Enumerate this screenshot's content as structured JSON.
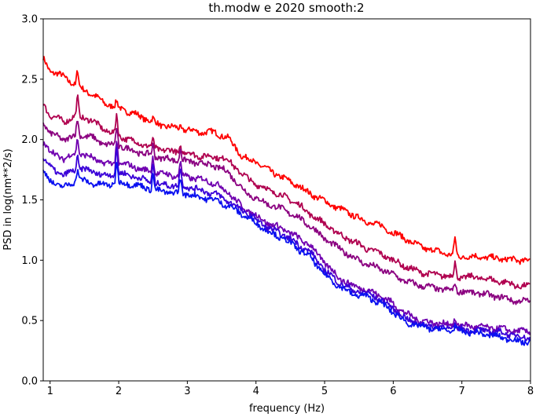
{
  "chart_data": {
    "type": "line",
    "title": "th.modw e 2020 smooth:2",
    "xlabel": "frequency (Hz)",
    "ylabel": "PSD in log(nm**2/s)",
    "xlim": [
      0.9,
      8.0
    ],
    "ylim": [
      0.0,
      3.0
    ],
    "xticks": [
      "1",
      "2",
      "3",
      "4",
      "5",
      "6",
      "7",
      "8"
    ],
    "yticks": [
      "0.0",
      "0.5",
      "1.0",
      "1.5",
      "2.0",
      "2.5",
      "3.0"
    ],
    "grid": false,
    "legend": "none",
    "x": [
      0.9,
      1.0,
      1.2,
      1.4,
      1.6,
      1.8,
      2.0,
      2.2,
      2.4,
      2.6,
      2.8,
      3.0,
      3.2,
      3.4,
      3.6,
      3.8,
      4.0,
      4.2,
      4.4,
      4.6,
      4.8,
      5.0,
      5.2,
      5.4,
      5.6,
      5.8,
      6.0,
      6.2,
      6.4,
      6.6,
      6.8,
      7.0,
      7.2,
      7.4,
      7.6,
      7.8,
      8.0
    ],
    "series": [
      {
        "color": "#ff0000",
        "values": [
          2.67,
          2.57,
          2.52,
          2.44,
          2.38,
          2.3,
          2.26,
          2.22,
          2.17,
          2.12,
          2.1,
          2.08,
          2.06,
          2.06,
          2.01,
          1.86,
          1.81,
          1.74,
          1.68,
          1.62,
          1.55,
          1.49,
          1.43,
          1.38,
          1.32,
          1.29,
          1.23,
          1.17,
          1.11,
          1.08,
          1.05,
          1.03,
          1.03,
          1.02,
          1.01,
          1.0,
          1.0
        ]
      },
      {
        "color": "#b0004f",
        "values": [
          2.3,
          2.2,
          2.15,
          2.2,
          2.16,
          2.08,
          2.03,
          1.99,
          1.95,
          1.92,
          1.9,
          1.89,
          1.86,
          1.86,
          1.83,
          1.71,
          1.63,
          1.58,
          1.53,
          1.47,
          1.38,
          1.3,
          1.22,
          1.16,
          1.1,
          1.06,
          1.0,
          0.94,
          0.9,
          0.88,
          0.87,
          0.86,
          0.86,
          0.84,
          0.82,
          0.79,
          0.78
        ]
      },
      {
        "color": "#8b0080",
        "values": [
          2.15,
          2.05,
          2.0,
          2.04,
          2.02,
          1.96,
          1.95,
          1.91,
          1.88,
          1.85,
          1.83,
          1.82,
          1.8,
          1.78,
          1.73,
          1.59,
          1.51,
          1.46,
          1.42,
          1.36,
          1.28,
          1.18,
          1.1,
          1.03,
          0.97,
          0.93,
          0.88,
          0.82,
          0.79,
          0.77,
          0.75,
          0.74,
          0.73,
          0.71,
          0.69,
          0.66,
          0.66
        ]
      },
      {
        "color": "#7000b0",
        "values": [
          1.98,
          1.9,
          1.84,
          1.89,
          1.85,
          1.8,
          1.8,
          1.78,
          1.74,
          1.72,
          1.7,
          1.69,
          1.67,
          1.64,
          1.56,
          1.44,
          1.37,
          1.3,
          1.26,
          1.19,
          1.12,
          0.98,
          0.86,
          0.79,
          0.76,
          0.71,
          0.64,
          0.55,
          0.5,
          0.48,
          0.47,
          0.46,
          0.45,
          0.44,
          0.43,
          0.41,
          0.41
        ]
      },
      {
        "color": "#3a00d8",
        "values": [
          1.85,
          1.77,
          1.7,
          1.76,
          1.74,
          1.7,
          1.72,
          1.7,
          1.66,
          1.63,
          1.62,
          1.61,
          1.58,
          1.55,
          1.49,
          1.41,
          1.34,
          1.26,
          1.21,
          1.14,
          1.06,
          0.92,
          0.82,
          0.75,
          0.73,
          0.68,
          0.6,
          0.51,
          0.47,
          0.45,
          0.44,
          0.43,
          0.42,
          0.41,
          0.4,
          0.37,
          0.36
        ]
      },
      {
        "color": "#0a10f0",
        "values": [
          1.73,
          1.66,
          1.6,
          1.67,
          1.64,
          1.62,
          1.64,
          1.63,
          1.6,
          1.57,
          1.56,
          1.55,
          1.52,
          1.5,
          1.45,
          1.38,
          1.31,
          1.23,
          1.18,
          1.1,
          1.02,
          0.88,
          0.79,
          0.72,
          0.7,
          0.65,
          0.57,
          0.48,
          0.45,
          0.43,
          0.42,
          0.41,
          0.4,
          0.38,
          0.36,
          0.33,
          0.32
        ]
      }
    ],
    "annotations": [
      {
        "x": 1.4,
        "heights": [
          0.14,
          0.16,
          0.14,
          0.14,
          0.12,
          0.1
        ]
      },
      {
        "x": 1.97,
        "heights": [
          0.05,
          0.18,
          0.16,
          0.22,
          0.24,
          0.2
        ]
      },
      {
        "x": 2.5,
        "heights": [
          0.03,
          0.06,
          0.1,
          0.15,
          0.18,
          0.15
        ]
      },
      {
        "x": 2.9,
        "heights": [
          0.02,
          0.05,
          0.12,
          0.14,
          0.16,
          0.14
        ]
      },
      {
        "x": 6.9,
        "heights": [
          0.15,
          0.12,
          0.08,
          0.06,
          0.04,
          0.04
        ]
      }
    ]
  }
}
